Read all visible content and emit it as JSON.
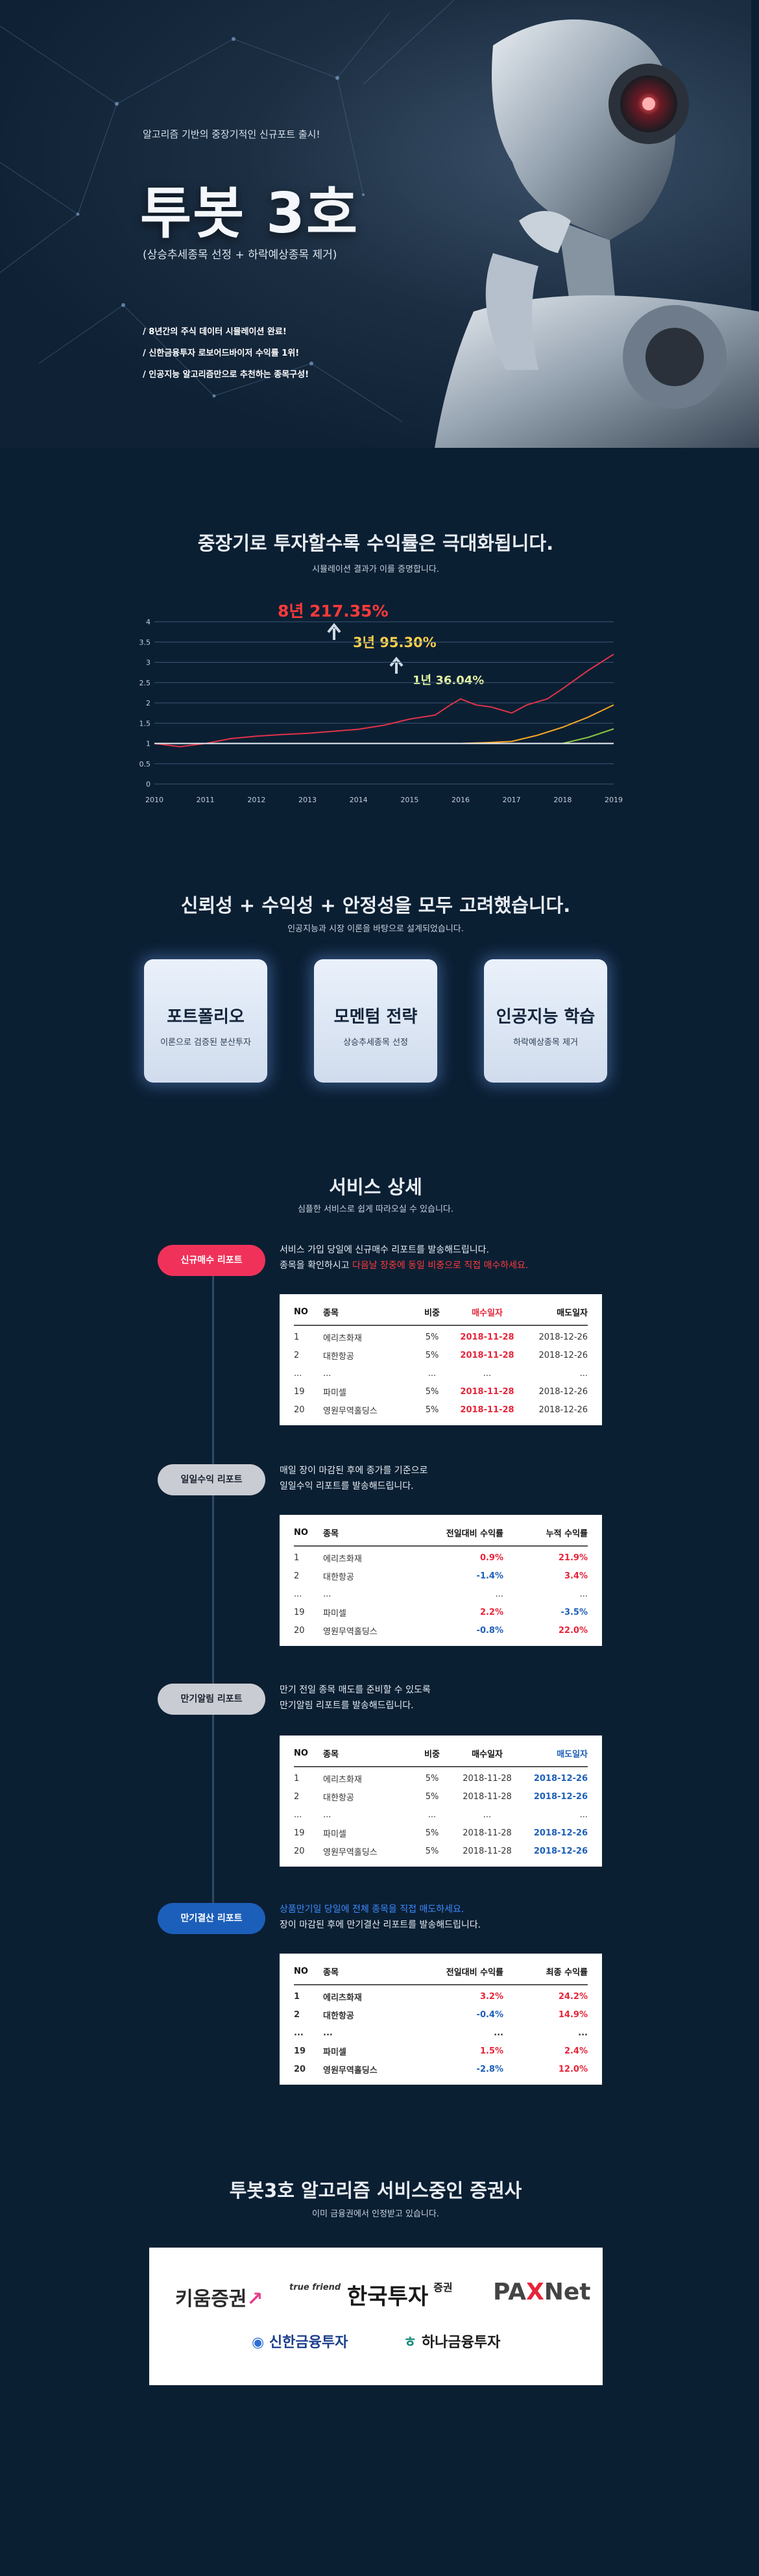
{
  "hero": {
    "subtitle": "알고리즘 기반의 중장기적인 신규포트 출시!",
    "title": "투봇 3호",
    "desc": "(상승추세종목 선정 + 하락예상종목 제거)",
    "bullets": [
      "8년간의 주식 데이터 시뮬레이션 완료!",
      "신한금융투자 로보어드바이저 수익률 1위!",
      "인공지능 알고리즘만으로 추천하는 종목구성!"
    ]
  },
  "returns": {
    "title": "중장기로 투자할수록 수익률은 극대화됩니다.",
    "subtitle": "시뮬레이션 결과가 이를 증명합니다.",
    "label_8y": "8년 217.35%",
    "label_3y": "3년 95.30%",
    "label_1y": "1년 36.04%"
  },
  "chart_data": {
    "type": "line",
    "x": [
      "2010",
      "2011",
      "2012",
      "2013",
      "2014",
      "2015",
      "2016",
      "2017",
      "2018",
      "2019"
    ],
    "ylim": [
      0,
      4
    ],
    "yticks": [
      "0",
      "0.5",
      "1",
      "1.5",
      "2",
      "2.5",
      "3",
      "3.5",
      "4"
    ],
    "series": [
      {
        "color": "#e0334a",
        "points": [
          [
            2010,
            1.0
          ],
          [
            2010.5,
            0.92
          ],
          [
            2011,
            1.0
          ],
          [
            2011.5,
            1.12
          ],
          [
            2012,
            1.18
          ],
          [
            2012.5,
            1.22
          ],
          [
            2013,
            1.25
          ],
          [
            2013.5,
            1.3
          ],
          [
            2014,
            1.35
          ],
          [
            2014.5,
            1.45
          ],
          [
            2015,
            1.6
          ],
          [
            2015.5,
            1.7
          ],
          [
            2015.8,
            1.95
          ],
          [
            2016,
            2.1
          ],
          [
            2016.3,
            1.95
          ],
          [
            2016.6,
            1.9
          ],
          [
            2017,
            1.75
          ],
          [
            2017.3,
            1.95
          ],
          [
            2017.7,
            2.1
          ],
          [
            2018,
            2.35
          ],
          [
            2018.5,
            2.8
          ],
          [
            2019,
            3.2
          ]
        ]
      },
      {
        "color": "#f5a623",
        "points": [
          [
            2016,
            1.0
          ],
          [
            2016.5,
            1.02
          ],
          [
            2017,
            1.05
          ],
          [
            2017.5,
            1.2
          ],
          [
            2018,
            1.4
          ],
          [
            2018.5,
            1.65
          ],
          [
            2019,
            1.95
          ]
        ]
      },
      {
        "color": "#8ac43f",
        "points": [
          [
            2018,
            1.0
          ],
          [
            2018.5,
            1.15
          ],
          [
            2019,
            1.36
          ]
        ]
      },
      {
        "color": "#e9eef4",
        "points": [
          [
            2010,
            1.0
          ],
          [
            2019,
            1.0
          ]
        ]
      }
    ]
  },
  "features": {
    "title": "신뢰성 + 수익성 + 안정성을 모두 고려했습니다.",
    "subtitle": "인공지능과 시장 이론을 바탕으로 설계되었습니다.",
    "cards": [
      {
        "title": "포트폴리오",
        "desc": "이론으로 검증된 분산투자"
      },
      {
        "title": "모멘텀 전략",
        "desc": "상승추세종목 선정"
      },
      {
        "title": "인공지능 학습",
        "desc": "하락예상종목 제거"
      }
    ]
  },
  "service": {
    "title": "서비스 상세",
    "subtitle": "심플한 서비스로 쉽게 따라오실 수 있습니다.",
    "steps": [
      {
        "pill": "신규매수 리포트",
        "line1": "서비스 가입 당일에 신규매수 리포트를 발송해드립니다.",
        "line2a": "종목을 확인하시고 ",
        "line2b": "다음날 장중에 동일 비중으로 직접 매수하세요.",
        "headers": [
          "NO",
          "종목",
          "비중",
          "매수일자",
          "매도일자"
        ],
        "rows": [
          [
            "1",
            "에리츠화재",
            "5%",
            "2018-11-28",
            "2018-12-26"
          ],
          [
            "2",
            "대한항공",
            "5%",
            "2018-11-28",
            "2018-12-26"
          ],
          [
            "...",
            "...",
            "...",
            "...",
            "..."
          ],
          [
            "19",
            "파미셀",
            "5%",
            "2018-11-28",
            "2018-12-26"
          ],
          [
            "20",
            "영원무역홀딩스",
            "5%",
            "2018-11-28",
            "2018-12-26"
          ]
        ]
      },
      {
        "pill": "일일수익 리포트",
        "line1": "매일 장이 마감된 후에 종가를 기준으로",
        "line2": "일일수익 리포트를 발송해드립니다.",
        "headers": [
          "NO",
          "종목",
          "전일대비 수익률",
          "누적 수익률"
        ],
        "rows": [
          [
            "1",
            "에리츠화재",
            "0.9%",
            "21.9%"
          ],
          [
            "2",
            "대한항공",
            "-1.4%",
            "3.4%"
          ],
          [
            "...",
            "...",
            "...",
            "..."
          ],
          [
            "19",
            "파미셀",
            "2.2%",
            "-3.5%"
          ],
          [
            "20",
            "영원무역홀딩스",
            "-0.8%",
            "22.0%"
          ]
        ]
      },
      {
        "pill": "만기알림 리포트",
        "line1": "만기 전일 종목 매도를 준비할 수 있도록",
        "line2": "만기알림 리포트를 발송해드립니다.",
        "headers": [
          "NO",
          "종목",
          "비중",
          "매수일자",
          "매도일자"
        ],
        "rows": [
          [
            "1",
            "에리츠화재",
            "5%",
            "2018-11-28",
            "2018-12-26"
          ],
          [
            "2",
            "대한항공",
            "5%",
            "2018-11-28",
            "2018-12-26"
          ],
          [
            "...",
            "...",
            "...",
            "...",
            "..."
          ],
          [
            "19",
            "파미셀",
            "5%",
            "2018-11-28",
            "2018-12-26"
          ],
          [
            "20",
            "영원무역홀딩스",
            "5%",
            "2018-11-28",
            "2018-12-26"
          ]
        ]
      },
      {
        "pill": "만기결산 리포트",
        "line1": "상품만기일 당일에 전체 종목을 직접 매도하세요.",
        "line2": "장이 마감된 후에 만기결산 리포트를 발송해드립니다.",
        "headers": [
          "NO",
          "종목",
          "전일대비 수익률",
          "최종 수익률"
        ],
        "rows": [
          [
            "1",
            "에리츠화재",
            "3.2%",
            "24.2%"
          ],
          [
            "2",
            "대한항공",
            "-0.4%",
            "14.9%"
          ],
          [
            "...",
            "...",
            "...",
            "..."
          ],
          [
            "19",
            "파미셀",
            "1.5%",
            "2.4%"
          ],
          [
            "20",
            "영원무역홀딩스",
            "-2.8%",
            "12.0%"
          ]
        ]
      }
    ]
  },
  "partners": {
    "title": "투봇3호 알고리즘 서비스중인 증권사",
    "subtitle": "이미 금융권에서 인정받고 있습니다.",
    "kiwoom": "키움증권",
    "truefriend": "true friend",
    "hankook": "한국투자",
    "hankook_suffix": "증권",
    "paxnet_pa": "PA",
    "paxnet_x": "X",
    "paxnet_net": "Net",
    "shinhan": "신한금융투자",
    "hana": "하나금융투자"
  }
}
